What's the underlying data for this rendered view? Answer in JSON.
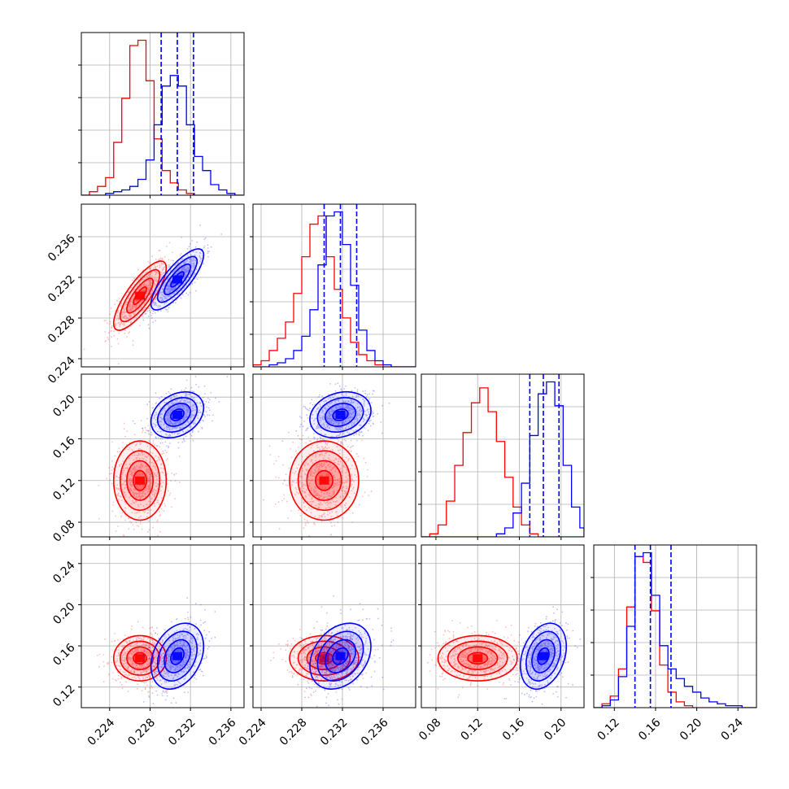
{
  "chart_data": {
    "type": "corner",
    "colors": {
      "red": "#ff0000",
      "blue": "#0000ff",
      "grid": "#b0b0b0",
      "frame": "#000000"
    },
    "grid": true,
    "series": [
      {
        "color": "#ff0000"
      },
      {
        "color": "#0000ff"
      }
    ],
    "axis_ranges": [
      [
        0.2212,
        0.2373
      ],
      [
        0.2232,
        0.2392
      ],
      [
        0.066,
        0.222
      ],
      [
        0.1,
        0.258
      ]
    ],
    "ticks": [
      [
        0.224,
        0.228,
        0.232,
        0.236
      ],
      [
        0.224,
        0.228,
        0.232,
        0.236
      ],
      [
        0.08,
        0.12,
        0.16,
        0.2
      ],
      [
        0.12,
        0.16,
        0.2,
        0.24
      ]
    ],
    "tick_labels": [
      [
        "0.224",
        "0.228",
        "0.232",
        "0.236"
      ],
      [
        "0.224",
        "0.228",
        "0.232",
        "0.236"
      ],
      [
        "0.08",
        "0.12",
        "0.16",
        "0.20"
      ],
      [
        "0.12",
        "0.16",
        "0.20",
        "0.24"
      ]
    ],
    "quantiles_blue": [
      [
        0.2291,
        0.2307,
        0.2323
      ],
      [
        0.2302,
        0.2318,
        0.2334
      ],
      [
        0.17,
        0.183,
        0.198
      ],
      [
        0.14,
        0.155,
        0.175
      ]
    ],
    "centers": {
      "red": [
        0.227,
        0.2302,
        0.12,
        0.148
      ],
      "blue": [
        0.2307,
        0.2318,
        0.183,
        0.15
      ]
    },
    "stds": {
      "red": [
        0.0013,
        0.0017,
        0.019,
        0.011
      ],
      "blue": [
        0.0013,
        0.0015,
        0.011,
        0.016
      ]
    },
    "correlations": {
      "red": {
        "0-1": 0.8,
        "0-2": 0.0,
        "1-2": 0.0,
        "0-3": 0.0,
        "1-3": 0.0,
        "2-3": 0.0
      },
      "blue": {
        "0-1": 0.8,
        "0-2": 0.3,
        "1-2": 0.2,
        "0-3": 0.3,
        "1-3": 0.3,
        "2-3": 0.3
      }
    },
    "histograms": [
      {
        "edges": [
          0.2212,
          0.222,
          0.2228,
          0.2236,
          0.2244,
          0.2252,
          0.226,
          0.2268,
          0.2276,
          0.2284,
          0.2292,
          0.23,
          0.2308,
          0.2316,
          0.2324,
          0.2332,
          0.234,
          0.2348,
          0.2356,
          0.2364,
          0.2372
        ],
        "red": [
          0,
          2,
          5,
          10,
          30,
          55,
          85,
          88,
          65,
          32,
          14,
          7,
          3,
          1,
          0,
          0,
          0,
          0,
          0,
          0
        ],
        "blue": [
          0,
          0,
          0,
          1,
          2,
          3,
          5,
          9,
          20,
          40,
          62,
          68,
          62,
          40,
          22,
          14,
          6,
          3,
          1,
          0
        ]
      },
      {
        "edges": [
          0.2232,
          0.224,
          0.2248,
          0.2256,
          0.2264,
          0.2272,
          0.228,
          0.2288,
          0.2296,
          0.2304,
          0.2312,
          0.232,
          0.2328,
          0.2336,
          0.2344,
          0.2352,
          0.236,
          0.2368,
          0.2376,
          0.2384,
          0.2392
        ],
        "red": [
          1,
          3,
          8,
          14,
          22,
          36,
          54,
          70,
          74,
          54,
          38,
          24,
          12,
          6,
          3,
          1,
          0,
          0,
          0,
          0
        ],
        "blue": [
          0,
          0,
          1,
          2,
          4,
          8,
          15,
          28,
          50,
          74,
          76,
          60,
          40,
          18,
          8,
          3,
          1,
          0,
          0,
          0
        ]
      },
      {
        "edges": [
          0.066,
          0.074,
          0.082,
          0.09,
          0.098,
          0.106,
          0.114,
          0.122,
          0.13,
          0.138,
          0.146,
          0.154,
          0.162,
          0.17,
          0.178,
          0.186,
          0.194,
          0.202,
          0.21,
          0.218,
          0.222
        ],
        "red": [
          0,
          1,
          4,
          12,
          24,
          35,
          45,
          50,
          42,
          32,
          20,
          10,
          4,
          1,
          0,
          0,
          0,
          0,
          0,
          0
        ],
        "blue": [
          0,
          0,
          0,
          0,
          0,
          0,
          0,
          0,
          0,
          1,
          3,
          8,
          18,
          34,
          48,
          52,
          44,
          24,
          10,
          3
        ]
      },
      {
        "edges": [
          0.1,
          0.108,
          0.116,
          0.124,
          0.132,
          0.14,
          0.148,
          0.156,
          0.164,
          0.172,
          0.18,
          0.188,
          0.196,
          0.204,
          0.212,
          0.22,
          0.228,
          0.236,
          0.244,
          0.252,
          0.258
        ],
        "red": [
          0,
          2,
          6,
          20,
          52,
          78,
          75,
          50,
          22,
          8,
          3,
          1,
          0,
          0,
          0,
          0,
          0,
          0,
          0,
          0
        ],
        "blue": [
          0,
          1,
          4,
          16,
          42,
          78,
          80,
          58,
          32,
          20,
          15,
          11,
          8,
          5,
          3,
          2,
          1,
          1,
          0,
          0
        ]
      }
    ]
  }
}
